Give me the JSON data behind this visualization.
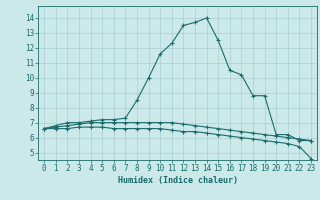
{
  "xlabel": "Humidex (Indice chaleur)",
  "background_color": "#cce9e9",
  "grid_color": "#aacfcf",
  "line_color": "#1a6b6b",
  "xlim": [
    -0.5,
    23.5
  ],
  "ylim": [
    4.5,
    14.8
  ],
  "xticks": [
    0,
    1,
    2,
    3,
    4,
    5,
    6,
    7,
    8,
    9,
    10,
    11,
    12,
    13,
    14,
    15,
    16,
    17,
    18,
    19,
    20,
    21,
    22,
    23
  ],
  "yticks": [
    5,
    6,
    7,
    8,
    9,
    10,
    11,
    12,
    13,
    14
  ],
  "line1_x": [
    0,
    1,
    2,
    3,
    4,
    5,
    6,
    7,
    8,
    9,
    10,
    11,
    12,
    13,
    14,
    15,
    16,
    17,
    18,
    19,
    20,
    21,
    22,
    23
  ],
  "line1_y": [
    6.6,
    6.8,
    7.0,
    7.0,
    7.1,
    7.2,
    7.2,
    7.3,
    8.5,
    10.0,
    11.6,
    12.3,
    13.5,
    13.7,
    14.0,
    12.5,
    10.5,
    10.2,
    8.8,
    8.8,
    6.2,
    6.2,
    5.8,
    5.8
  ],
  "line2_x": [
    0,
    1,
    2,
    3,
    4,
    5,
    6,
    7,
    8,
    9,
    10,
    11,
    12,
    13,
    14,
    15,
    16,
    17,
    18,
    19,
    20,
    21,
    22,
    23
  ],
  "line2_y": [
    6.6,
    6.7,
    6.8,
    6.9,
    7.0,
    7.0,
    7.0,
    7.0,
    7.0,
    7.0,
    7.0,
    7.0,
    6.9,
    6.8,
    6.7,
    6.6,
    6.5,
    6.4,
    6.3,
    6.2,
    6.1,
    6.0,
    5.9,
    5.8
  ],
  "line3_x": [
    0,
    1,
    2,
    3,
    4,
    5,
    6,
    7,
    8,
    9,
    10,
    11,
    12,
    13,
    14,
    15,
    16,
    17,
    18,
    19,
    20,
    21,
    22,
    23
  ],
  "line3_y": [
    6.6,
    6.6,
    6.6,
    6.7,
    6.7,
    6.7,
    6.6,
    6.6,
    6.6,
    6.6,
    6.6,
    6.5,
    6.4,
    6.4,
    6.3,
    6.2,
    6.1,
    6.0,
    5.9,
    5.8,
    5.7,
    5.6,
    5.4,
    4.6
  ]
}
